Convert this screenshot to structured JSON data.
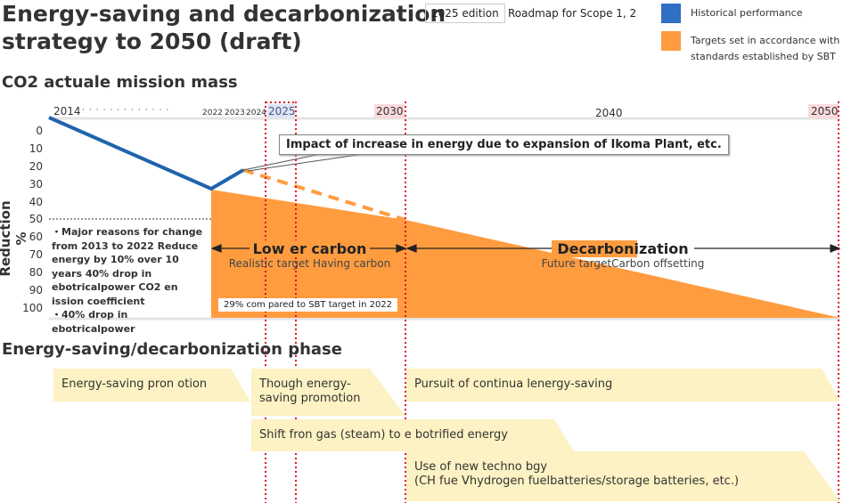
{
  "header": {
    "title_line1": "Energy-saving and decarbonization",
    "title_line2": "strategy to 2050 (draft)",
    "edition": "2025 edition",
    "scope": "Roadmap for Scope 1, 2"
  },
  "legend": {
    "historical": {
      "label": "Historical performance",
      "color": "#2f6fc4"
    },
    "targets": {
      "label_line1": "Targets set in accordance with",
      "label_line2": "standards established by SBT",
      "color": "#ff9c40"
    }
  },
  "chart": {
    "heading": "CO2 actuale mission mass",
    "y_label": "Reduction %",
    "y_ticks": [
      "0",
      "10",
      "20",
      "30",
      "40",
      "50",
      "60",
      "70",
      "80",
      "90",
      "100"
    ],
    "x_labels": {
      "y2014": "2014",
      "y2022": "2022",
      "y2023": "2023",
      "y2024": "2024",
      "y2025": "2025",
      "y2030": "2030",
      "y2040": "2040",
      "y2050": "2050"
    },
    "callout": "Impact of increase in energy due to expansion of Ikoma Plant, etc.",
    "notes": [
      "・Major reasons for change from 2013 to 2022 Reduce energy by 10% over 10 years 40% drop in ebotricalpower CO2 en ission coefficient",
      "・40% drop in ebotricalpower"
    ],
    "phase1": {
      "title": "Low er carbon",
      "subtitle": "Realistic target Having carbon"
    },
    "phase2": {
      "title": "Decarbonization",
      "subtitle": "Future targetCarbon offsetting"
    },
    "sbt_note": "29% com pared to SBT target in 2022",
    "colors": {
      "historical": "#1f63ad",
      "target": "#ff9c40",
      "marker": "#e0102a"
    }
  },
  "phases": {
    "heading": "Energy-saving/decarbonization phase",
    "items": [
      {
        "text": "Energy-saving pron otion"
      },
      {
        "text": "Though energy-\nsaving promotion"
      },
      {
        "text": "Pursuit of continua lenergy-saving"
      },
      {
        "text": "Shift fron gas (steam) to e botrified energy"
      },
      {
        "text": "Use of new techno bgy\n(CH fue Vhydrogen fuelbatteries/storage batteries, etc.)"
      }
    ],
    "color": "#fcf2c3"
  }
}
